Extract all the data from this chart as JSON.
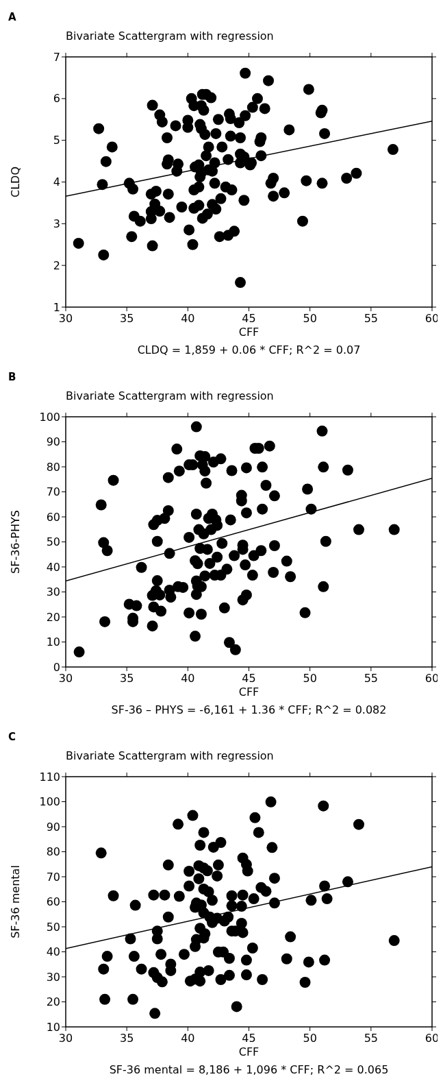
{
  "chart_data": [
    {
      "type": "scatter",
      "title": "Bivariate Scattergram with regression",
      "xlabel": "CFF",
      "ylabel": "CLDQ",
      "annotations": [
        "A",
        "CLDQ = 1,859 + 0.06 * CFF; R^2 = 0.07"
      ],
      "xlim": [
        30,
        60
      ],
      "ylim": [
        1,
        7
      ],
      "xticks": [
        30,
        35,
        40,
        45,
        50,
        55,
        60
      ],
      "yticks": [
        1,
        2,
        3,
        4,
        5,
        6,
        7
      ],
      "grid": false,
      "series": [
        {
          "marker": "circle",
          "color": "#000000",
          "x": [
            31.05,
            32.7,
            33.8,
            33.3,
            33.0,
            33.1,
            35.2,
            35.5,
            35.6,
            36.1,
            35.4,
            37.1,
            37.1,
            37.7,
            37.9,
            38.3,
            38.4,
            38.3,
            38.4,
            37.4,
            37.0,
            37.3,
            37.0,
            37.7,
            37.0,
            38.5,
            39.0,
            39.2,
            39.1,
            39.5,
            40.0,
            40.0,
            40.3,
            40.5,
            41.0,
            41.1,
            41.2,
            41.5,
            41.9,
            41.1,
            41.3,
            41.4,
            41.7,
            41.5,
            40.1,
            40.4,
            40.5,
            40.9,
            40.5,
            40.9,
            41.2,
            41.6,
            40.6,
            40.9,
            41.0,
            41.1,
            41.7,
            42.0,
            42.2,
            42.2,
            42.0,
            42.3,
            42.7,
            42.6,
            43.3,
            43.8,
            42.3,
            42.5,
            42.8,
            43.3,
            43.1,
            43.6,
            43.4,
            43.5,
            43.5,
            44.2,
            44.3,
            44.7,
            44.3,
            44.3,
            44.6,
            44.7,
            44.3,
            44.6,
            45.1,
            45.2,
            45.3,
            45.7,
            45.9,
            46.0,
            46.0,
            46.3,
            46.6,
            46.8,
            47.0,
            47.0,
            47.9,
            48.3,
            49.4,
            49.7,
            49.9,
            50.9,
            51.0,
            51.2,
            51.0,
            53.0,
            53.8,
            56.8
          ],
          "values": [
            2.53,
            5.28,
            4.84,
            4.49,
            3.94,
            2.25,
            3.97,
            3.83,
            3.18,
            3.06,
            2.69,
            2.47,
            5.84,
            5.61,
            5.44,
            5.06,
            4.53,
            4.43,
            3.71,
            3.78,
            3.71,
            3.47,
            3.29,
            3.3,
            3.12,
            3.15,
            5.35,
            4.43,
            4.26,
            3.4,
            5.48,
            5.31,
            6.0,
            5.83,
            5.38,
            5.28,
            6.1,
            6.1,
            6.02,
            5.83,
            5.72,
            5.14,
            4.84,
            4.63,
            2.85,
            2.5,
            3.81,
            3.88,
            3.37,
            3.44,
            3.13,
            3.23,
            4.36,
            4.41,
            4.12,
            4.22,
            4.29,
            4.26,
            4.46,
            3.97,
            3.46,
            3.35,
            3.6,
            2.69,
            2.72,
            2.82,
            5.16,
            5.5,
            4.84,
            4.54,
            3.88,
            3.81,
            5.63,
            5.52,
            5.1,
            5.42,
            5.06,
            5.59,
            4.67,
            4.46,
            4.6,
            6.61,
            1.59,
            3.56,
            4.41,
            4.46,
            5.79,
            6.0,
            4.97,
            5.06,
            4.63,
            5.76,
            6.43,
            3.97,
            4.09,
            3.66,
            3.74,
            5.25,
            3.06,
            4.03,
            6.22,
            5.66,
            5.72,
            5.16,
            3.97,
            4.09,
            4.21,
            4.78
          ]
        },
        {
          "type": "line",
          "color": "#000000",
          "x": [
            30,
            60
          ],
          "values": [
            3.66,
            5.46
          ]
        }
      ]
    },
    {
      "type": "scatter",
      "title": "Bivariate Scattergram with regression",
      "xlabel": "CFF",
      "ylabel": "SF-36-PHYS",
      "annotations": [
        "B",
        "SF-36 – PHYS = -6,161 + 1.36 * CFF; R^2 = 0.082"
      ],
      "xlim": [
        30,
        60
      ],
      "ylim": [
        0,
        100
      ],
      "xticks": [
        30,
        35,
        40,
        45,
        50,
        55,
        60
      ],
      "yticks": [
        0,
        10,
        20,
        30,
        40,
        50,
        60,
        70,
        80,
        90,
        100
      ],
      "grid": false,
      "series": [
        {
          "marker": "circle",
          "color": "#000000",
          "x": [
            31.1,
            32.9,
            33.1,
            33.4,
            33.2,
            33.9,
            35.2,
            35.8,
            35.5,
            35.5,
            36.2,
            37.1,
            37.2,
            37.8,
            37.1,
            37.4,
            37.5,
            37.5,
            37.2,
            37.5,
            38.1,
            38.4,
            38.4,
            38.5,
            37.7,
            38.5,
            38.6,
            39.1,
            39.3,
            39.2,
            39.6,
            40.1,
            40.1,
            40.4,
            40.7,
            40.7,
            40.6,
            40.8,
            40.7,
            40.8,
            40.7,
            41.1,
            40.1,
            41.1,
            40.6,
            41.0,
            41.4,
            41.2,
            41.4,
            41.5,
            40.9,
            41.3,
            41.0,
            41.6,
            41.8,
            41.4,
            41.9,
            42.0,
            41.7,
            42.3,
            42.4,
            42.1,
            42.7,
            42.4,
            42.2,
            42.7,
            43.2,
            42.8,
            43.0,
            43.6,
            43.5,
            43.8,
            43.4,
            43.9,
            44.8,
            44.4,
            44.4,
            44.8,
            44.5,
            44.5,
            44.7,
            44.5,
            44.8,
            45.3,
            45.4,
            45.5,
            45.8,
            46.1,
            46.1,
            46.0,
            46.4,
            46.7,
            47.1,
            47.1,
            47.0,
            48.1,
            48.4,
            49.6,
            49.8,
            50.1,
            51.0,
            51.1,
            51.3,
            51.1,
            53.1,
            54.0,
            56.9
          ],
          "values": [
            6.0,
            64.8,
            49.7,
            46.5,
            18.1,
            74.6,
            25.1,
            24.5,
            19.5,
            18.1,
            39.8,
            16.4,
            24.0,
            22.3,
            28.6,
            30.5,
            34.5,
            50.2,
            56.9,
            58.6,
            59.4,
            62.5,
            75.7,
            45.4,
            28.8,
            30.7,
            27.9,
            87.1,
            78.3,
            32.1,
            31.8,
            51.8,
            80.8,
            80.8,
            96.0,
            61.1,
            42.5,
            41.3,
            34.4,
            32.4,
            29.0,
            32.1,
            21.6,
            21.1,
            12.3,
            84.4,
            84.1,
            80.8,
            78.3,
            73.5,
            54.9,
            53.2,
            47.4,
            47.0,
            41.4,
            36.4,
            54.9,
            61.1,
            59.4,
            58.8,
            56.6,
            81.9,
            83.2,
            43.9,
            36.7,
            36.7,
            39.1,
            49.4,
            23.6,
            78.5,
            58.8,
            44.5,
            9.8,
            6.9,
            79.6,
            68.6,
            66.4,
            61.6,
            48.7,
            47.0,
            40.8,
            26.8,
            28.8,
            36.7,
            44.5,
            87.4,
            87.4,
            79.9,
            63.1,
            46.5,
            72.6,
            88.3,
            68.4,
            48.5,
            37.8,
            42.3,
            36.1,
            21.7,
            71.1,
            63.1,
            94.3,
            79.9,
            50.2,
            32.1,
            78.7,
            54.9,
            54.9
          ]
        },
        {
          "type": "line",
          "color": "#000000",
          "x": [
            30,
            60
          ],
          "values": [
            34.4,
            75.4
          ]
        }
      ]
    },
    {
      "type": "scatter",
      "title": "Bivariate Scattergram with regression",
      "xlabel": "CFF",
      "ylabel": "SF-36 mental",
      "annotations": [
        "C",
        "SF-36 mental = 8,186 + 1,096 * CFF; R^2 = 0.065"
      ],
      "xlim": [
        30,
        60
      ],
      "ylim": [
        10,
        110
      ],
      "xticks": [
        30,
        35,
        40,
        45,
        50,
        55,
        60
      ],
      "yticks": [
        10,
        20,
        30,
        40,
        50,
        60,
        70,
        80,
        90,
        100,
        110
      ],
      "grid": false,
      "series": [
        {
          "marker": "circle",
          "color": "#000000",
          "x": [
            32.9,
            33.1,
            33.2,
            33.4,
            33.9,
            35.3,
            35.6,
            35.5,
            35.7,
            36.2,
            37.2,
            37.5,
            37.5,
            37.2,
            37.5,
            37.9,
            37.3,
            37.8,
            38.1,
            38.4,
            38.4,
            38.6,
            38.6,
            39.2,
            39.3,
            39.7,
            40.1,
            40.1,
            40.4,
            40.2,
            40.6,
            41.0,
            41.0,
            41.7,
            40.6,
            40.7,
            41.3,
            41.4,
            41.0,
            40.6,
            40.7,
            41.1,
            41.3,
            41.0,
            41.3,
            40.9,
            41.3,
            41.6,
            41.3,
            41.7,
            42.0,
            40.9,
            41.8,
            42.0,
            42.4,
            42.1,
            42.7,
            42.5,
            42.4,
            42.5,
            42.9,
            43.4,
            42.7,
            43.4,
            43.0,
            43.3,
            43.6,
            43.6,
            43.6,
            43.9,
            44.0,
            44.5,
            44.8,
            44.9,
            44.5,
            44.4,
            44.4,
            44.5,
            44.8,
            44.8,
            45.3,
            45.4,
            45.5,
            45.8,
            46.1,
            46.0,
            46.4,
            46.8,
            46.9,
            47.1,
            47.1,
            48.1,
            48.4,
            49.6,
            49.9,
            50.1,
            51.1,
            51.2,
            51.4,
            51.2,
            53.1,
            54.0,
            56.9
          ],
          "values": [
            79.5,
            33.1,
            21.0,
            38.2,
            62.4,
            45.2,
            38.2,
            21.0,
            58.6,
            33.1,
            62.7,
            48.3,
            45.2,
            31.7,
            29.7,
            28.0,
            15.4,
            39.0,
            62.7,
            53.9,
            74.7,
            35.1,
            32.5,
            91.0,
            62.2,
            39.0,
            72.2,
            66.3,
            94.5,
            28.3,
            29.1,
            28.3,
            31.9,
            32.5,
            42.1,
            44.9,
            45.5,
            47.2,
            49.4,
            57.8,
            59.5,
            58.7,
            55.6,
            82.6,
            87.7,
            74.4,
            73.5,
            72.4,
            65.1,
            64.0,
            60.6,
            69.2,
            53.9,
            51.7,
            53.4,
            81.8,
            83.7,
            74.7,
            70.3,
            39.9,
            39.9,
            37.4,
            28.9,
            30.6,
            52.3,
            53.9,
            62.4,
            58.4,
            48.3,
            48.3,
            18.1,
            77.5,
            74.9,
            72.3,
            62.7,
            58.2,
            51.4,
            47.7,
            36.7,
            30.8,
            41.5,
            61.2,
            93.6,
            87.7,
            28.9,
            65.7,
            64.2,
            99.9,
            81.7,
            69.4,
            59.5,
            37.2,
            46.0,
            27.8,
            35.9,
            60.6,
            98.3,
            66.3,
            61.2,
            36.7,
            68.0,
            90.9,
            44.5
          ]
        },
        {
          "type": "line",
          "color": "#000000",
          "x": [
            30,
            60
          ],
          "values": [
            41.3,
            74.0
          ]
        }
      ]
    }
  ]
}
